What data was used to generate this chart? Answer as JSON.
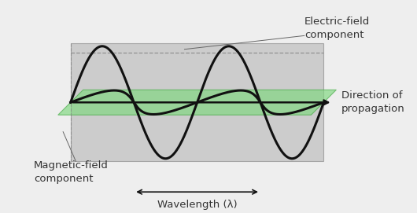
{
  "background_color": "#eeeeee",
  "gray_plane_color": "#bbbbbb",
  "gray_plane_alpha": 0.65,
  "green_plane_color": "#7dd87d",
  "green_plane_alpha": 0.65,
  "wave_color": "#111111",
  "wave_linewidth": 2.2,
  "axis_color": "#111111",
  "dashed_color": "#888888",
  "text_color": "#333333",
  "labels": {
    "electric_field": "Electric-field\ncomponent",
    "magnetic_field": "Magnetic-field\ncomponent",
    "wavelength": "Wavelength (λ)",
    "direction": "Direction of\npropagation"
  },
  "font_size_labels": 9.5,
  "font_size_wavelength": 9.5
}
